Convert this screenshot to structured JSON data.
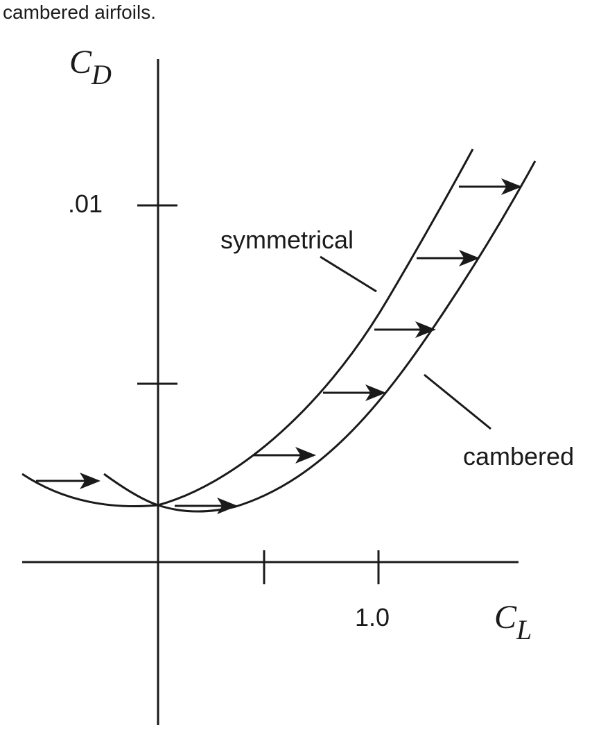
{
  "caption": "cambered airfoils.",
  "axes": {
    "y_symbol": "C",
    "y_subscript": "D",
    "x_symbol": "C",
    "x_subscript": "L",
    "y_tick_label": ".01",
    "x_tick_label": "1.0"
  },
  "curves": {
    "symmetrical_label": "symmetrical",
    "cambered_label": "cambered"
  },
  "colors": {
    "ink": "#1a1a1a",
    "background": "#ffffff"
  }
}
